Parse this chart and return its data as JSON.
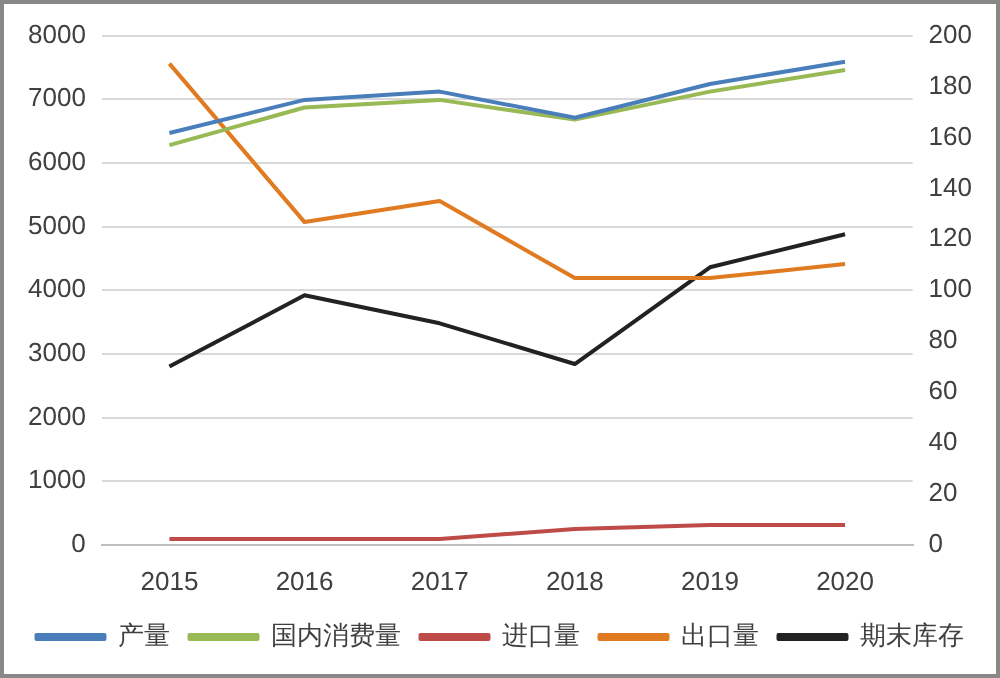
{
  "chart_data": {
    "type": "line",
    "categories": [
      "2015",
      "2016",
      "2017",
      "2018",
      "2019",
      "2020"
    ],
    "series": [
      {
        "name": "产量",
        "color": "#4a7ebb",
        "values": [
          6470,
          6990,
          7120,
          6710,
          7240,
          7590
        ]
      },
      {
        "name": "国内消费量",
        "color": "#98b954",
        "values": [
          6280,
          6870,
          6990,
          6680,
          7120,
          7460
        ]
      },
      {
        "name": "进口量",
        "color": "#be4b48",
        "values": [
          90,
          90,
          90,
          250,
          310,
          310
        ]
      },
      {
        "name": "出口量",
        "color": "#e07b22",
        "values": [
          7560,
          5070,
          5400,
          4190,
          4190,
          4410
        ]
      },
      {
        "name": "期末库存",
        "color": "#222222",
        "axis": "y2",
        "values": [
          70,
          98,
          87,
          71,
          109,
          122
        ]
      }
    ],
    "ylim": [
      0,
      8000
    ],
    "yticks": [
      0,
      1000,
      2000,
      3000,
      4000,
      5000,
      6000,
      7000,
      8000
    ],
    "y2lim": [
      0,
      200
    ],
    "y2ticks": [
      0,
      20,
      40,
      60,
      80,
      100,
      120,
      140,
      160,
      180,
      200
    ],
    "grid": "y",
    "legend": "bottom",
    "marker": "none",
    "line_style": "solid"
  }
}
